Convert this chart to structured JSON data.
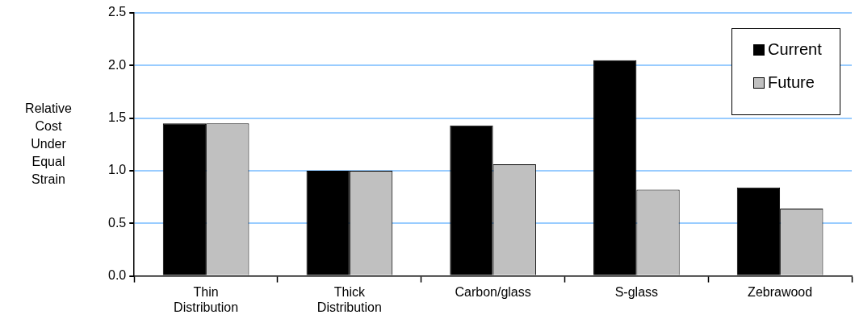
{
  "chart_data": {
    "type": "bar",
    "ylabel": "Relative Cost Under Equal Strain",
    "categories": [
      "Thin Distribution",
      "Thick Distribution",
      "Carbon/glass",
      "S-glass",
      "Zebrawood"
    ],
    "series": [
      {
        "name": "Current",
        "color": "#000000",
        "values": [
          1.45,
          1.0,
          1.43,
          2.05,
          0.84
        ]
      },
      {
        "name": "Future",
        "color": "#c0c0c0",
        "values": [
          1.45,
          1.0,
          1.06,
          0.82,
          0.64
        ]
      }
    ],
    "ylim": [
      0,
      2.5
    ],
    "yticks": [
      {
        "value": 0,
        "label": "0.0"
      },
      {
        "value": 0.5,
        "label": "0.5"
      },
      {
        "value": 1,
        "label": "1.0"
      },
      {
        "value": 1.5,
        "label": "1.5"
      },
      {
        "value": 2,
        "label": "2.0"
      },
      {
        "value": 2.5,
        "label": "2.5"
      }
    ],
    "grid": "y",
    "legend": "top right"
  }
}
